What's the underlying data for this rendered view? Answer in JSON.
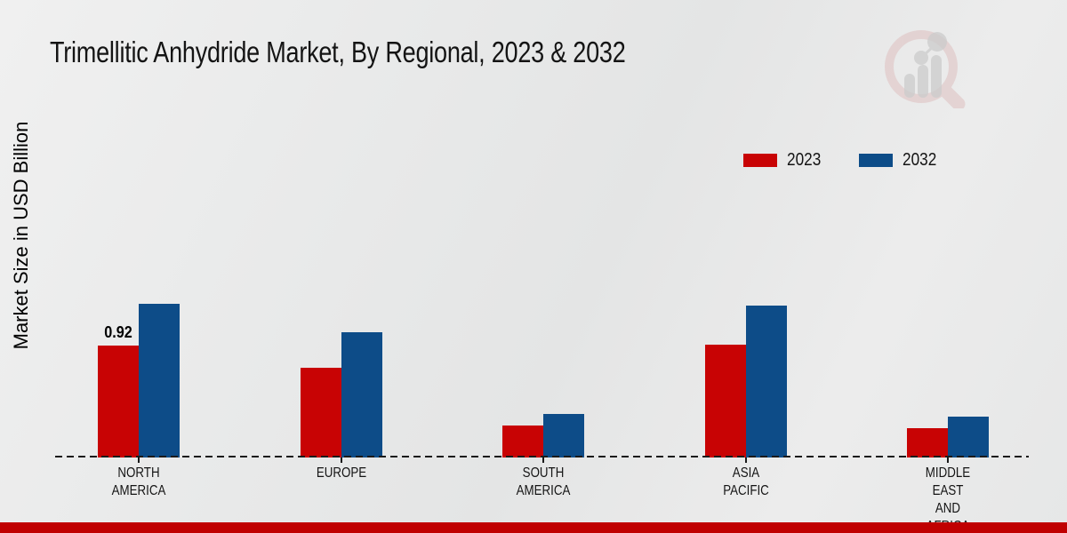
{
  "title": "Trimellitic Anhydride Market, By Regional, 2023 & 2032",
  "ylabel": "Market Size in USD Billion",
  "legend": [
    {
      "label": "2023",
      "color": "#c80304"
    },
    {
      "label": "2032",
      "color": "#0d4c88"
    }
  ],
  "chart_data": {
    "type": "bar",
    "title": "Trimellitic Anhydride Market, By Regional, 2023 & 2032",
    "xlabel": "",
    "ylabel": "Market Size in USD Billion",
    "categories": [
      "North America",
      "Europe",
      "South America",
      "Asia Pacific",
      "Middle East and Africa"
    ],
    "category_display": [
      "NORTH\nAMERICA",
      "EUROPE",
      "SOUTH\nAMERICA",
      "ASIA\nPACIFIC",
      "MIDDLE\nEAST\nAND\nAFRICA"
    ],
    "series": [
      {
        "name": "2023",
        "color": "#c80304",
        "values": [
          0.92,
          0.74,
          0.26,
          0.93,
          0.24
        ]
      },
      {
        "name": "2032",
        "color": "#0d4c88",
        "values": [
          1.27,
          1.03,
          0.36,
          1.25,
          0.34
        ]
      }
    ],
    "annotations": [
      {
        "series_index": 0,
        "category_index": 0,
        "text": "0.92"
      }
    ],
    "ylim": [
      0,
      1.4
    ],
    "grid": false,
    "axis_style": "dashed-baseline-only",
    "legend_position": "top-right"
  },
  "colors": {
    "background": "#e8e9e9",
    "baseline": "#1a1a1a",
    "footer_bar": "#c00001",
    "text": "#141414"
  },
  "watermark": {
    "name": "market-research-future-logo"
  }
}
